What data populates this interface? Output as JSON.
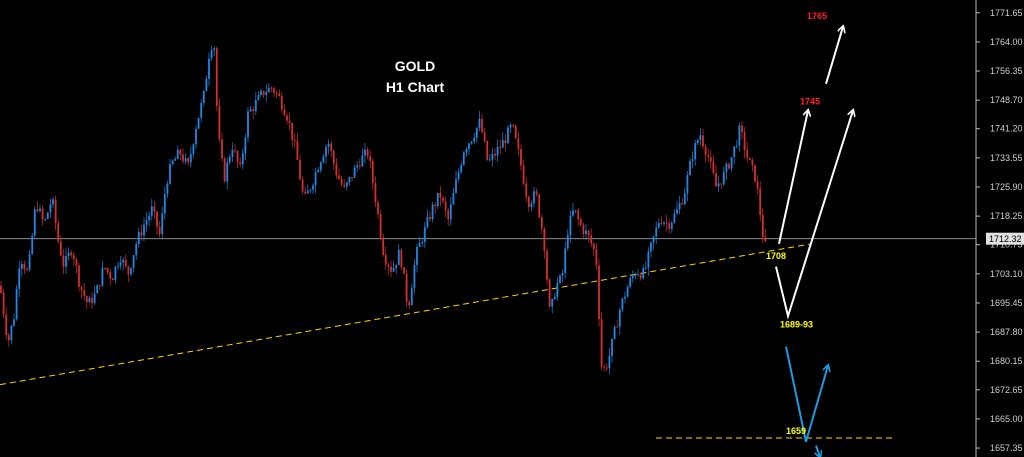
{
  "chart_data": {
    "type": "candlestick",
    "title": "GOLD",
    "subtitle": "H1 Chart",
    "xlabel": "",
    "ylabel": "",
    "ylim": [
      1655.0,
      1775.0
    ],
    "y_ticks": [
      "1771.65",
      "1764.00",
      "1756.35",
      "1748.70",
      "1741.20",
      "1733.55",
      "1725.90",
      "1718.25",
      "1710.75",
      "1703.10",
      "1695.45",
      "1687.80",
      "1680.15",
      "1672.65",
      "1665.00",
      "1657.35"
    ],
    "current_price": "1712.32",
    "current_price_value": 1712.32,
    "colors": {
      "bull": "#1e88e5",
      "bear": "#d32f2f",
      "trendline": "#ffd400",
      "scenario_up": "#ffffff",
      "scenario_down": "#1e9be0",
      "target_label": "#ff2020",
      "level_label": "#ffff00"
    },
    "price_path": [
      [
        0,
        1700
      ],
      [
        8,
        1685
      ],
      [
        14,
        1692
      ],
      [
        20,
        1708
      ],
      [
        28,
        1703
      ],
      [
        36,
        1722
      ],
      [
        44,
        1716
      ],
      [
        52,
        1723
      ],
      [
        58,
        1712
      ],
      [
        64,
        1705
      ],
      [
        72,
        1710
      ],
      [
        80,
        1700
      ],
      [
        88,
        1695
      ],
      [
        96,
        1698
      ],
      [
        104,
        1705
      ],
      [
        112,
        1702
      ],
      [
        120,
        1708
      ],
      [
        128,
        1703
      ],
      [
        136,
        1711
      ],
      [
        144,
        1716
      ],
      [
        152,
        1720
      ],
      [
        160,
        1713
      ],
      [
        166,
        1727
      ],
      [
        172,
        1732
      ],
      [
        180,
        1735
      ],
      [
        188,
        1731
      ],
      [
        196,
        1742
      ],
      [
        204,
        1750
      ],
      [
        210,
        1763
      ],
      [
        214,
        1764
      ],
      [
        218,
        1740
      ],
      [
        224,
        1728
      ],
      [
        232,
        1737
      ],
      [
        240,
        1730
      ],
      [
        248,
        1745
      ],
      [
        256,
        1748
      ],
      [
        264,
        1751
      ],
      [
        272,
        1752
      ],
      [
        280,
        1749
      ],
      [
        288,
        1744
      ],
      [
        296,
        1735
      ],
      [
        304,
        1722
      ],
      [
        312,
        1727
      ],
      [
        320,
        1733
      ],
      [
        328,
        1738
      ],
      [
        336,
        1730
      ],
      [
        344,
        1725
      ],
      [
        352,
        1729
      ],
      [
        360,
        1733
      ],
      [
        368,
        1735
      ],
      [
        376,
        1722
      ],
      [
        384,
        1708
      ],
      [
        392,
        1704
      ],
      [
        400,
        1709
      ],
      [
        408,
        1694
      ],
      [
        416,
        1708
      ],
      [
        424,
        1714
      ],
      [
        432,
        1720
      ],
      [
        440,
        1724
      ],
      [
        448,
        1717
      ],
      [
        456,
        1727
      ],
      [
        464,
        1736
      ],
      [
        472,
        1739
      ],
      [
        480,
        1743
      ],
      [
        488,
        1732
      ],
      [
        496,
        1735
      ],
      [
        504,
        1738
      ],
      [
        512,
        1742
      ],
      [
        520,
        1733
      ],
      [
        528,
        1722
      ],
      [
        536,
        1724
      ],
      [
        544,
        1712
      ],
      [
        550,
        1692
      ],
      [
        556,
        1700
      ],
      [
        562,
        1702
      ],
      [
        568,
        1715
      ],
      [
        574,
        1720
      ],
      [
        580,
        1716
      ],
      [
        588,
        1713
      ],
      [
        596,
        1708
      ],
      [
        602,
        1677
      ],
      [
        608,
        1680
      ],
      [
        614,
        1687
      ],
      [
        620,
        1694
      ],
      [
        628,
        1700
      ],
      [
        636,
        1704
      ],
      [
        644,
        1703
      ],
      [
        652,
        1711
      ],
      [
        660,
        1718
      ],
      [
        668,
        1716
      ],
      [
        676,
        1719
      ],
      [
        684,
        1724
      ],
      [
        692,
        1734
      ],
      [
        700,
        1740
      ],
      [
        708,
        1734
      ],
      [
        716,
        1726
      ],
      [
        724,
        1729
      ],
      [
        732,
        1734
      ],
      [
        740,
        1741
      ],
      [
        748,
        1733
      ],
      [
        756,
        1728
      ],
      [
        764,
        1711
      ],
      [
        768,
        1709
      ]
    ],
    "lines": [
      {
        "name": "uptrend-line",
        "from": [
          0,
          1674
        ],
        "to": [
          812,
          1711
        ]
      },
      {
        "name": "support-1659-line",
        "from": [
          656,
          1660
        ],
        "to": [
          892,
          1660
        ]
      }
    ],
    "scenarios": {
      "up_path": [
        [
          779,
          1711
        ],
        [
          808,
          1746
        ]
      ],
      "dip_up_path": [
        [
          776,
          1705
        ],
        [
          788,
          1692
        ],
        [
          853,
          1746
        ]
      ],
      "extension_path": [
        [
          826,
          1753
        ],
        [
          843,
          1768
        ]
      ],
      "down_path": [
        [
          786,
          1684
        ],
        [
          806,
          1659
        ],
        [
          828,
          1679
        ]
      ],
      "tail_path": [
        [
          816,
          1658
        ],
        [
          820,
          1655
        ]
      ]
    },
    "annotations": [
      {
        "text": "1765",
        "role": "target",
        "x": 807,
        "y": 1770
      },
      {
        "text": "1745",
        "role": "target",
        "x": 800,
        "y": 1747.5
      },
      {
        "text": "1708",
        "role": "level",
        "x": 766,
        "y": 1707
      },
      {
        "text": "1689-93",
        "role": "level",
        "x": 780,
        "y": 1689
      },
      {
        "text": "1659",
        "role": "level",
        "x": 786,
        "y": 1661
      }
    ]
  }
}
